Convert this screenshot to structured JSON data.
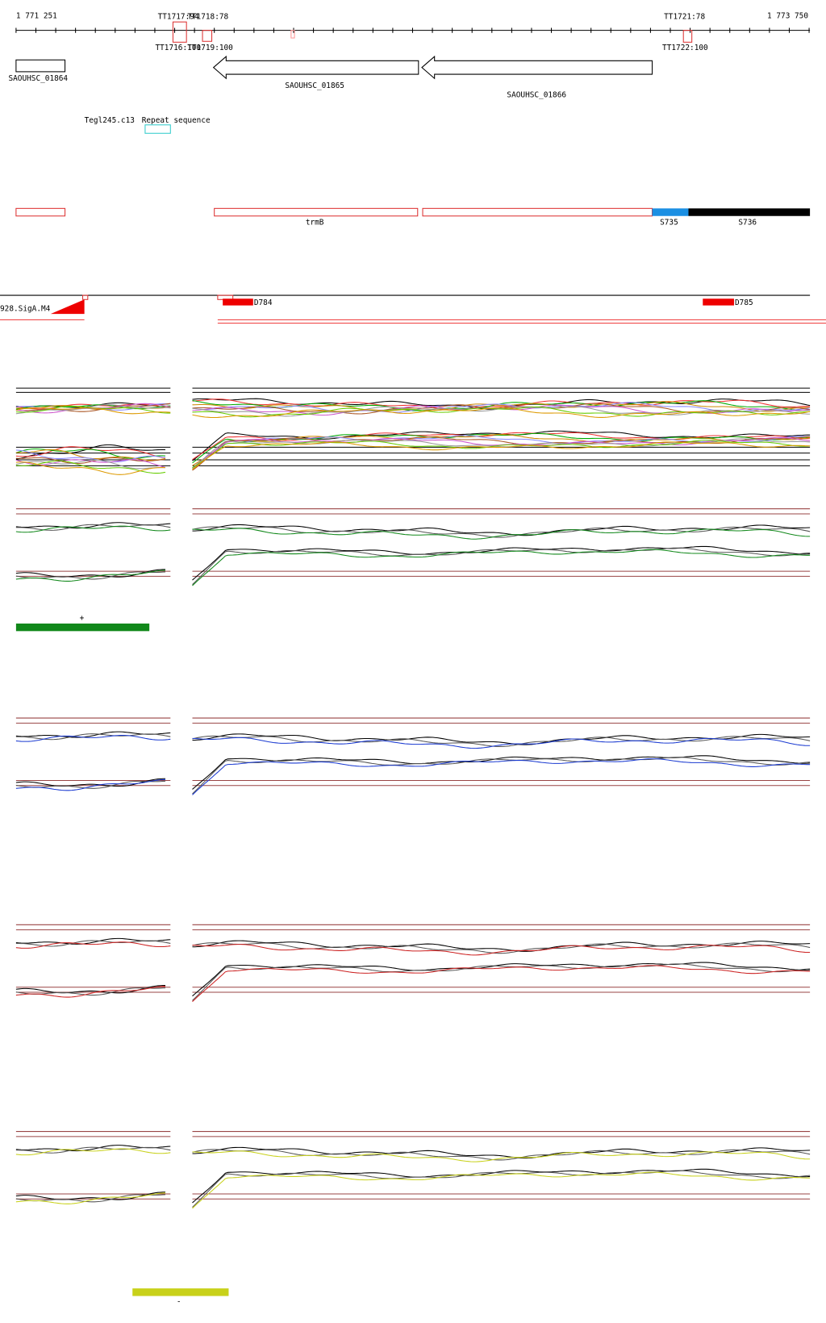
{
  "ruler": {
    "start": "1 771 251",
    "end": "1 773 750"
  },
  "terminators": {
    "top": [
      "TT1717:94",
      "TT1718:78",
      "TT1721:78"
    ],
    "bottom": [
      "TT1716:100",
      "TT1719:100",
      "TT1722:100"
    ]
  },
  "genes": [
    "SAOUHSC_01864",
    "SAOUHSC_01865",
    "SAOUHSC_01866"
  ],
  "repeats": [
    "Tegl245.c13",
    "Repeat sequence"
  ],
  "transcripts": [
    "trmB",
    "S735",
    "S736"
  ],
  "promoters": [
    "928.SigA.M4",
    "D784",
    "D785"
  ],
  "strands": [
    "+",
    "-"
  ]
}
